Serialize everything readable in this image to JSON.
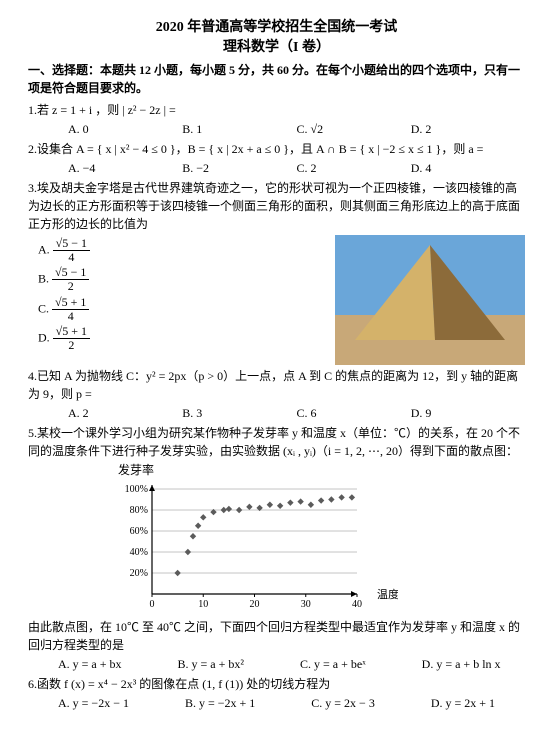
{
  "header": {
    "line1": "2020 年普通高等学校招生全国统一考试",
    "line2": "理科数学（I 卷）"
  },
  "section": "一、选择题：本题共 12 小题，每小题 5 分，共 60 分。在每个小题给出的四个选项中，只有一项是符合题目要求的。",
  "q1": {
    "text": "1.若 z = 1 + i ，则 | z² − 2z | =",
    "A": "A. 0",
    "B": "B. 1",
    "C": "C. √2",
    "D": "D. 2"
  },
  "q2": {
    "text": "2.设集合 A = { x | x² − 4 ≤ 0 }，B = { x | 2x + a ≤ 0 }，且 A ∩ B = { x | −2 ≤ x ≤ 1 }，则 a =",
    "A": "A. −4",
    "B": "B. −2",
    "C": "C. 2",
    "D": "D. 4"
  },
  "q3": {
    "intro": "3.埃及胡夫金字塔是古代世界建筑奇迹之一，它的形状可视为一个正四棱锥，一该四棱锥的高为边长的正方形面积等于该四棱锥一个侧面三角形的面积，则其侧面三角形底边上的高于底面正方形的边长的比值为",
    "A_pre": "A. ",
    "A_num": "√5 − 1",
    "A_den": "4",
    "B_pre": "B. ",
    "B_num": "√5 − 1",
    "B_den": "2",
    "C_pre": "C. ",
    "C_num": "√5 + 1",
    "C_den": "4",
    "D_pre": "D. ",
    "D_num": "√5 + 1",
    "D_den": "2",
    "pyramid": {
      "sky_color": "#6aa6d9",
      "sand_color": "#c8a878",
      "face_light": "#d4b26a",
      "face_shade": "#8c6b3a"
    }
  },
  "q4": {
    "text": "4.已知 A 为抛物线 C：y² = 2px（p > 0）上一点，点 A 到 C 的焦点的距离为 12，到 y 轴的距离为 9，则 p =",
    "A": "A. 2",
    "B": "B. 3",
    "C": "C. 6",
    "D": "D. 9"
  },
  "q5": {
    "text": "5.某校一个课外学习小组为研究某作物种子发芽率 y 和温度 x（单位：℃）的关系，在 20 个不同的温度条件下进行种子发芽实验，由实验数据 (xᵢ , yᵢ)（i = 1, 2, ⋯, 20）得到下面的散点图：",
    "chart": {
      "title": "发芽率",
      "xlabel": "温度/℃",
      "ylim": [
        0,
        100
      ],
      "yticks": [
        20,
        40,
        60,
        80,
        100
      ],
      "xlim": [
        0,
        40
      ],
      "xticks": [
        0,
        10,
        20,
        30,
        40
      ],
      "grid_color": "#888888",
      "bg_color": "#ffffff",
      "marker": "diamond",
      "marker_color": "#5b5b5b",
      "points": [
        [
          5,
          20
        ],
        [
          7,
          40
        ],
        [
          8,
          55
        ],
        [
          9,
          65
        ],
        [
          10,
          73
        ],
        [
          12,
          78
        ],
        [
          14,
          80
        ],
        [
          15,
          81
        ],
        [
          17,
          80
        ],
        [
          19,
          83
        ],
        [
          21,
          82
        ],
        [
          23,
          85
        ],
        [
          25,
          84
        ],
        [
          27,
          87
        ],
        [
          29,
          88
        ],
        [
          31,
          85
        ],
        [
          33,
          89
        ],
        [
          35,
          90
        ],
        [
          37,
          92
        ],
        [
          39,
          92
        ]
      ]
    },
    "text2": "由此散点图，在 10℃ 至 40℃ 之间，下面四个回归方程类型中最适宜作为发芽率 y 和温度 x 的回归方程类型的是",
    "A": "A. y = a + bx",
    "B": "B. y = a + bx²",
    "C": "C. y = a + beˣ",
    "D": "D. y = a + b ln x"
  },
  "q6": {
    "text": "6.函数 f (x) = x⁴ − 2x³ 的图像在点 (1, f (1)) 处的切线方程为",
    "A": "A. y = −2x − 1",
    "B": "B. y = −2x + 1",
    "C": "C. y = 2x − 3",
    "D": "D. y = 2x + 1"
  }
}
